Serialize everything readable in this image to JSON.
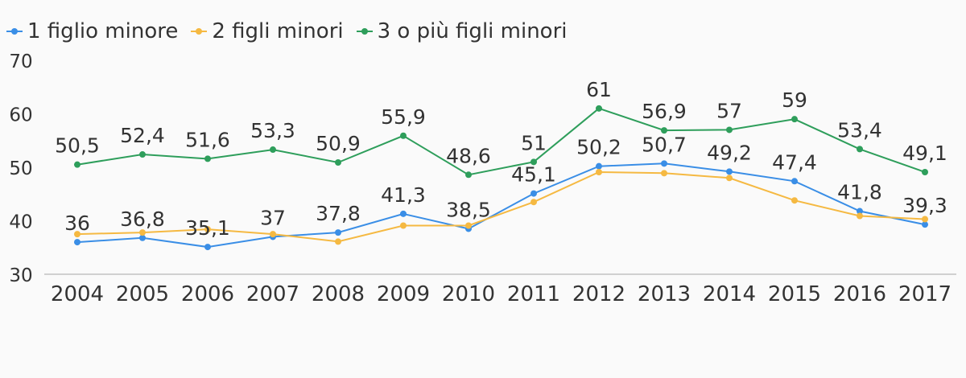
{
  "chart_data": {
    "type": "line",
    "title": "",
    "xlabel": "",
    "ylabel": "",
    "ylim": [
      30,
      70
    ],
    "yticks": [
      "30",
      "40",
      "50",
      "60",
      "70"
    ],
    "categories": [
      "2004",
      "2005",
      "2006",
      "2007",
      "2008",
      "2009",
      "2010",
      "2011",
      "2012",
      "2013",
      "2014",
      "2015",
      "2016",
      "2017"
    ],
    "legend_position": "top-left",
    "grid": false,
    "series": [
      {
        "name": "1 figlio minore",
        "color": "#3a8ee6",
        "values": [
          36,
          36.8,
          35.1,
          37,
          37.8,
          41.3,
          38.5,
          45.1,
          50.2,
          50.7,
          49.2,
          47.4,
          41.8,
          39.3
        ],
        "labels": [
          "36",
          "36,8",
          "35,1",
          "37",
          "37,8",
          "41,3",
          "38,5",
          "45,1",
          "50,2",
          "50,7",
          "49,2",
          "47,4",
          "41,8",
          "39,3"
        ],
        "show_labels": true
      },
      {
        "name": "2 figli minori",
        "color": "#f5b942",
        "values": [
          37.5,
          37.8,
          38.4,
          37.5,
          36.1,
          39.1,
          39.1,
          43.5,
          49.1,
          48.9,
          48.0,
          43.8,
          40.9,
          40.3
        ],
        "labels": [],
        "show_labels": false
      },
      {
        "name": "3 o più figli minori",
        "color": "#2e9e5b",
        "values": [
          50.5,
          52.4,
          51.6,
          53.3,
          50.9,
          55.9,
          48.6,
          51,
          61,
          56.9,
          57,
          59,
          53.4,
          49.1
        ],
        "labels": [
          "50,5",
          "52,4",
          "51,6",
          "53,3",
          "50,9",
          "55,9",
          "48,6",
          "51",
          "61",
          "56,9",
          "57",
          "59",
          "53,4",
          "49,1"
        ],
        "show_labels": true
      }
    ]
  }
}
